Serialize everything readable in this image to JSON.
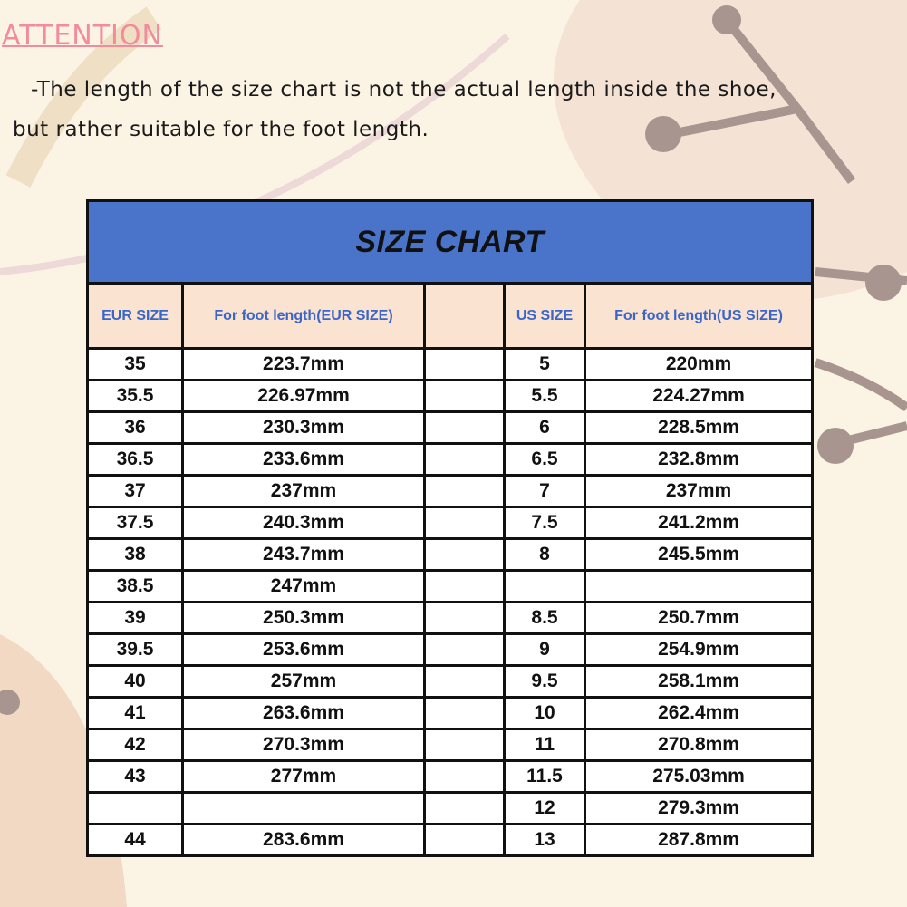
{
  "attention": {
    "heading": "ATTENTION",
    "line1": "-The length of the size chart is not the actual length inside the shoe,",
    "line2": "but rather suitable for the foot length."
  },
  "table": {
    "title": "SIZE CHART",
    "columns": [
      "EUR SIZE",
      "For foot length(EUR SIZE)",
      "",
      "US SIZE",
      "For foot length(US SIZE)"
    ],
    "rows": [
      [
        "35",
        "223.7mm",
        "",
        "5",
        "220mm"
      ],
      [
        "35.5",
        "226.97mm",
        "",
        "5.5",
        "224.27mm"
      ],
      [
        "36",
        "230.3mm",
        "",
        "6",
        "228.5mm"
      ],
      [
        "36.5",
        "233.6mm",
        "",
        "6.5",
        "232.8mm"
      ],
      [
        "37",
        "237mm",
        "",
        "7",
        "237mm"
      ],
      [
        "37.5",
        "240.3mm",
        "",
        "7.5",
        "241.2mm"
      ],
      [
        "38",
        "243.7mm",
        "",
        "8",
        "245.5mm"
      ],
      [
        "38.5",
        "247mm",
        "",
        "",
        ""
      ],
      [
        "39",
        "250.3mm",
        "",
        "8.5",
        "250.7mm"
      ],
      [
        "39.5",
        "253.6mm",
        "",
        "9",
        "254.9mm"
      ],
      [
        "40",
        "257mm",
        "",
        "9.5",
        "258.1mm"
      ],
      [
        "41",
        "263.6mm",
        "",
        "10",
        "262.4mm"
      ],
      [
        "42",
        "270.3mm",
        "",
        "11",
        "270.8mm"
      ],
      [
        "43",
        "277mm",
        "",
        "11.5",
        "275.03mm"
      ],
      [
        "",
        "",
        "",
        "12",
        "279.3mm"
      ],
      [
        "44",
        "283.6mm",
        "",
        "13",
        "287.8mm"
      ]
    ]
  },
  "colors": {
    "header_blue": "#4a74c9",
    "column_header_bg": "#fbe3d2",
    "column_header_text": "#3a66c8",
    "attention": "#f28b9c"
  }
}
